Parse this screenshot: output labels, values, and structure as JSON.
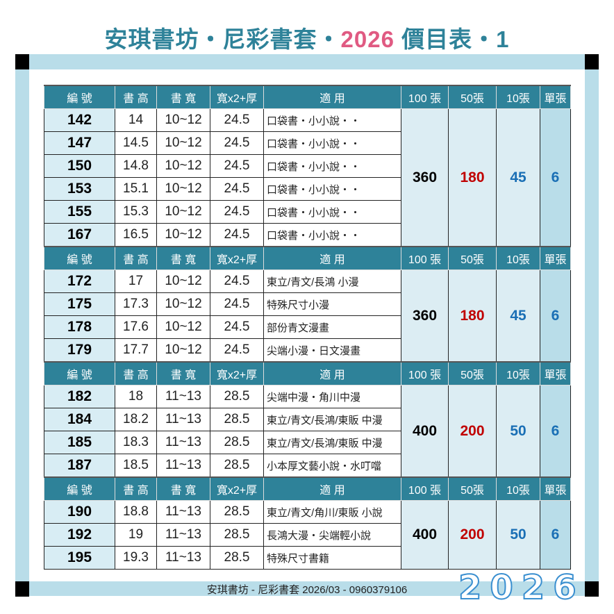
{
  "title": {
    "part1": "安琪書坊・尼彩書套・",
    "year": "2026",
    "part2": " 價目表・1"
  },
  "headers": [
    "編 號",
    "書 高",
    "書 寬",
    "寬x2+厚",
    "適 用",
    "100 張",
    "50張",
    "10張",
    "單張"
  ],
  "colors": {
    "header": "#2e8299",
    "title": "#2e8299",
    "year": "#e05a82",
    "price100": "#000000",
    "price50": "#c00000",
    "price10": "#1a6fb5",
    "single": "#1a6fb5"
  },
  "groups": [
    {
      "rows": [
        {
          "no": "142",
          "h": "14",
          "w": "10~12",
          "s": "24.5",
          "use": "口袋書・小小說・・"
        },
        {
          "no": "147",
          "h": "14.5",
          "w": "10~12",
          "s": "24.5",
          "use": "口袋書・小小說・・"
        },
        {
          "no": "150",
          "h": "14.8",
          "w": "10~12",
          "s": "24.5",
          "use": "口袋書・小小說・・"
        },
        {
          "no": "153",
          "h": "15.1",
          "w": "10~12",
          "s": "24.5",
          "use": "口袋書・小小說・・"
        },
        {
          "no": "155",
          "h": "15.3",
          "w": "10~12",
          "s": "24.5",
          "use": "口袋書・小小說・・"
        },
        {
          "no": "167",
          "h": "16.5",
          "w": "10~12",
          "s": "24.5",
          "use": "口袋書・小小說・・"
        }
      ],
      "p100": "360",
      "p50": "180",
      "p10": "45",
      "p1": "6"
    },
    {
      "rows": [
        {
          "no": "172",
          "h": "17",
          "w": "10~12",
          "s": "24.5",
          "use": "東立/青文/長鴻 小漫"
        },
        {
          "no": "175",
          "h": "17.3",
          "w": "10~12",
          "s": "24.5",
          "use": "特殊尺寸小漫"
        },
        {
          "no": "178",
          "h": "17.6",
          "w": "10~12",
          "s": "24.5",
          "use": "部份青文漫畫"
        },
        {
          "no": "179",
          "h": "17.7",
          "w": "10~12",
          "s": "24.5",
          "use": "尖端小漫・日文漫畫"
        }
      ],
      "p100": "360",
      "p50": "180",
      "p10": "45",
      "p1": "6"
    },
    {
      "rows": [
        {
          "no": "182",
          "h": "18",
          "w": "11~13",
          "s": "28.5",
          "use": "尖端中漫・角川中漫"
        },
        {
          "no": "184",
          "h": "18.2",
          "w": "11~13",
          "s": "28.5",
          "use": "東立/青文/長鴻/東販 中漫"
        },
        {
          "no": "185",
          "h": "18.3",
          "w": "11~13",
          "s": "28.5",
          "use": "東立/青文/長鴻/東販 中漫"
        },
        {
          "no": "187",
          "h": "18.5",
          "w": "11~13",
          "s": "28.5",
          "use": "小本厚文藝小說・水叮噹"
        }
      ],
      "p100": "400",
      "p50": "200",
      "p10": "50",
      "p1": "6"
    },
    {
      "rows": [
        {
          "no": "190",
          "h": "18.8",
          "w": "11~13",
          "s": "28.5",
          "use": "東立/青文/角川/東販 小說"
        },
        {
          "no": "192",
          "h": "19",
          "w": "11~13",
          "s": "28.5",
          "use": "長鴻大漫・尖端輕小說"
        },
        {
          "no": "195",
          "h": "19.3",
          "w": "11~13",
          "s": "28.5",
          "use": "特殊尺寸書籍"
        }
      ],
      "p100": "400",
      "p50": "200",
      "p10": "50",
      "p1": "6"
    }
  ],
  "footer": {
    "text": "安琪書坊 - 尼彩書套 2026/03 - 0960379106",
    "year_logo": "2026"
  }
}
